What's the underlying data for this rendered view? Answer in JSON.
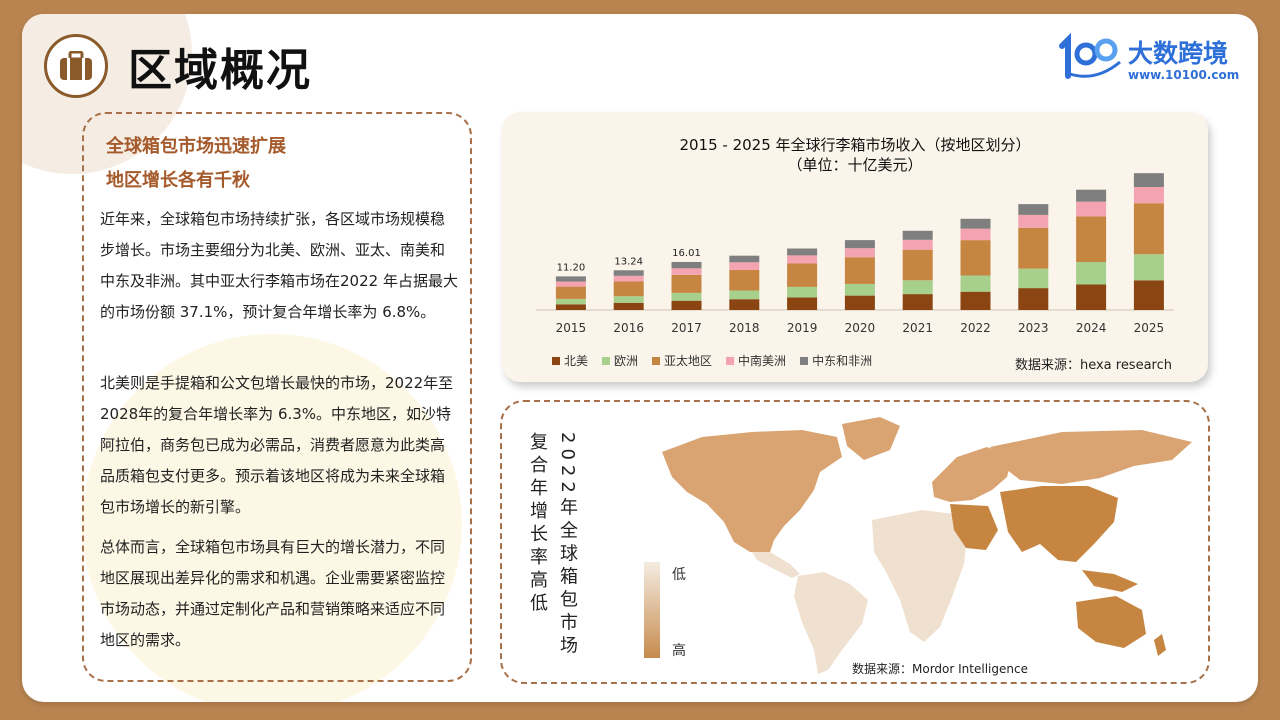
{
  "header": {
    "title": "区域概况"
  },
  "logo": {
    "name": "大数跨境",
    "url": "www.10100.com"
  },
  "text": {
    "subtitle1": "全球箱包市场迅速扩展",
    "subtitle2": "地区增长各有千秋",
    "p1": "近年来，全球箱包市场持续扩张，各区域市场规模稳步增长。市场主要细分为北美、欧洲、亚太、南美和中东及非洲。其中亚太行李箱市场在2022 年占据最大的市场份额 37.1%，预计复合年增长率为 6.8%。",
    "p2": "北美则是手提箱和公文包增长最快的市场，2022年至2028年的复合年增长率为 6.3%。中东地区，如沙特阿拉伯，商务包已成为必需品，消费者愿意为此类高品质箱包支付更多。预示着该地区将成为未来全球箱包市场增长的新引擎。",
    "p3": "总体而言，全球箱包市场具有巨大的增长潜力，不同地区展现出差异化的需求和机遇。企业需要紧密监控市场动态，并通过定制化产品和营销策略来适应不同地区的需求。"
  },
  "chart_data": {
    "type": "bar",
    "stacked": true,
    "title": "2015 - 2025 年全球行李箱市场收入（按地区划分）",
    "subtitle": "（单位：十亿美元）",
    "categories": [
      "2015",
      "2016",
      "2017",
      "2018",
      "2019",
      "2020",
      "2021",
      "2022",
      "2023",
      "2024",
      "2025"
    ],
    "series": [
      {
        "name": "北美",
        "color": "#8b4513",
        "values": [
          1.9,
          2.4,
          3.1,
          3.6,
          4.2,
          4.8,
          5.3,
          6.1,
          7.3,
          8.5,
          9.9
        ]
      },
      {
        "name": "欧洲",
        "color": "#a8d08d",
        "values": [
          1.8,
          2.2,
          2.6,
          2.9,
          3.5,
          3.9,
          4.6,
          5.4,
          6.5,
          7.5,
          8.7
        ]
      },
      {
        "name": "亚太地区",
        "color": "#c68642",
        "values": [
          4.1,
          4.9,
          6.0,
          6.9,
          7.8,
          8.9,
          10.2,
          11.8,
          13.6,
          15.2,
          17.0
        ]
      },
      {
        "name": "中南美洲",
        "color": "#f4a3b1",
        "values": [
          1.7,
          1.9,
          2.2,
          2.5,
          2.7,
          3.0,
          3.3,
          3.8,
          4.3,
          4.9,
          5.4
        ]
      },
      {
        "name": "中东和非洲",
        "color": "#7f7f7f",
        "values": [
          1.7,
          1.84,
          2.11,
          2.2,
          2.3,
          2.7,
          3.0,
          3.3,
          3.6,
          4.0,
          4.6
        ]
      }
    ],
    "data_labels": {
      "2015": "11.20",
      "2016": "13.24",
      "2017": "16.01"
    },
    "ylim": [
      0,
      50
    ],
    "legend_position": "bottom",
    "source": "数据来源：hexa research"
  },
  "map": {
    "title_col1": "2022年全球箱包市场",
    "title_col2": "复合年增长率高低",
    "legend_low": "低",
    "legend_high": "高",
    "source": "数据来源：Mordor Intelligence",
    "colors": {
      "high": "#c68642",
      "mid": "#d9a472",
      "low": "#f0e0cf"
    }
  }
}
